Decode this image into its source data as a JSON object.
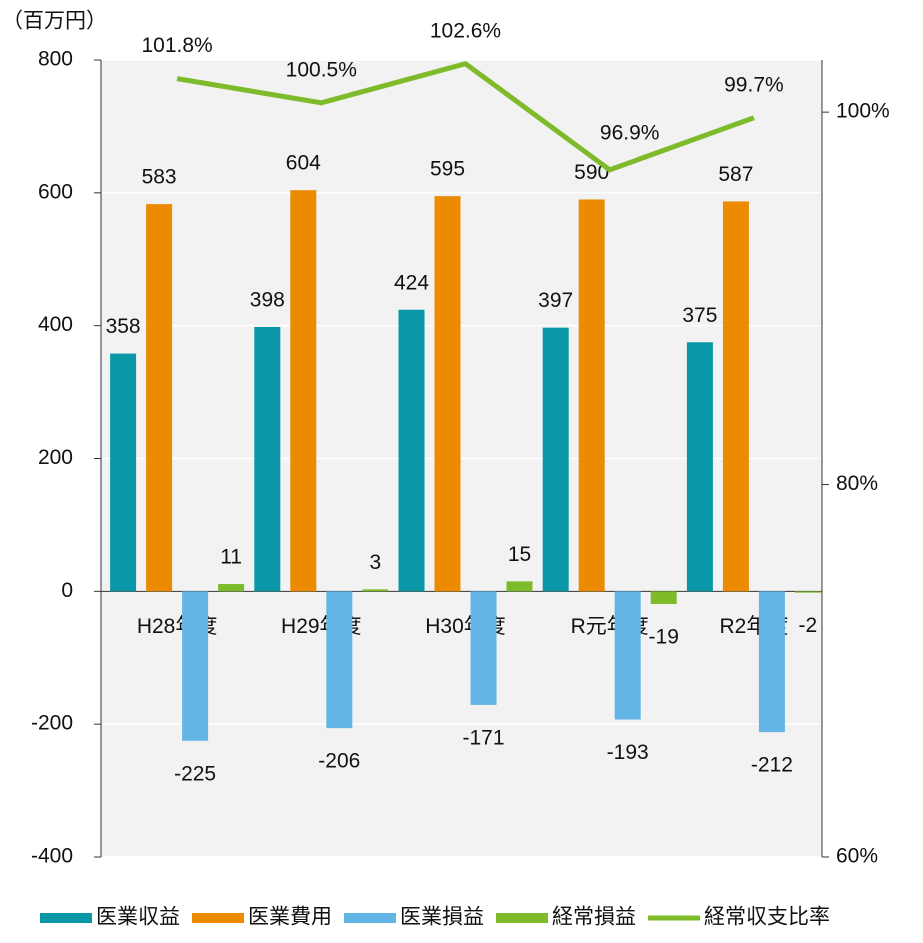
{
  "chart_data": {
    "type": "bar_line",
    "unit_label": "（百万円）",
    "categories": [
      "H28年度",
      "H29年度",
      "H30年度",
      "R元年度",
      "R2年度"
    ],
    "series": [
      {
        "name": "医業収益",
        "color": "#0a97a8",
        "values": [
          358,
          398,
          424,
          397,
          375
        ]
      },
      {
        "name": "医業費用",
        "color": "#ec8a00",
        "values": [
          583,
          604,
          595,
          590,
          587
        ]
      },
      {
        "name": "医業損益",
        "color": "#62b5e5",
        "values": [
          -225,
          -206,
          -171,
          -193,
          -212
        ]
      },
      {
        "name": "経常損益",
        "color": "#7dbb2b",
        "values": [
          11,
          3,
          15,
          -19,
          -2
        ]
      },
      {
        "name": "経常収支比率",
        "color": "#7dbb2b",
        "type": "line",
        "axis": "y2",
        "values": [
          101.8,
          100.5,
          102.6,
          96.9,
          99.7
        ],
        "value_labels": [
          "101.8%",
          "100.5%",
          "102.6%",
          "96.9%",
          "99.7%"
        ]
      }
    ],
    "ylim": [
      -400,
      800
    ],
    "yticks": [
      -400,
      -200,
      0,
      200,
      400,
      600,
      800
    ],
    "y2lim": [
      60,
      102.8
    ],
    "y2ticks": [
      {
        "value": 60,
        "label": "60%"
      },
      {
        "value": 80,
        "label": "80%"
      },
      {
        "value": 100,
        "label": "100%"
      }
    ],
    "grid": true,
    "legend": "bottom"
  }
}
